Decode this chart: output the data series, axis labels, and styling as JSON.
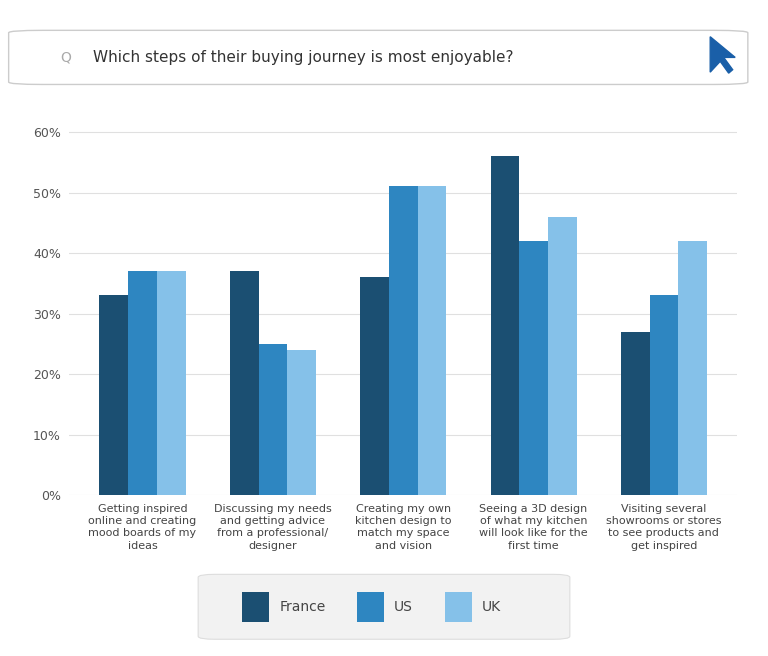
{
  "categories": [
    "Getting inspired\nonline and creating\nmood boards of my\nideas",
    "Discussing my needs\nand getting advice\nfrom a professional/\ndesigner",
    "Creating my own\nkitchen design to\nmatch my space\nand vision",
    "Seeing a 3D design\nof what my kitchen\nwill look like for the\nfirst time",
    "Visiting several\nshowrooms or stores\nto see products and\nget inspired"
  ],
  "series": {
    "France": [
      33,
      37,
      36,
      56,
      27
    ],
    "US": [
      37,
      25,
      51,
      42,
      33
    ],
    "UK": [
      37,
      24,
      51,
      46,
      42
    ]
  },
  "colors": {
    "France": "#1b4f72",
    "US": "#2e86c1",
    "UK": "#85c1e9"
  },
  "ylim": [
    0,
    65
  ],
  "yticks": [
    0,
    10,
    20,
    30,
    40,
    50,
    60
  ],
  "ytick_labels": [
    "0%",
    "10%",
    "20%",
    "30%",
    "40%",
    "50%",
    "60%"
  ],
  "legend_labels": [
    "France",
    "US",
    "UK"
  ],
  "search_text": "Which steps of their buying journey is most enjoyable?",
  "background_color": "#ffffff",
  "plot_bg_color": "#ffffff",
  "grid_color": "#e0e0e0",
  "bar_width": 0.22,
  "xlabel_fontsize": 8,
  "tick_fontsize": 9,
  "legend_fontsize": 10,
  "search_fontsize": 11,
  "cursor_color": "#1a5fa8"
}
